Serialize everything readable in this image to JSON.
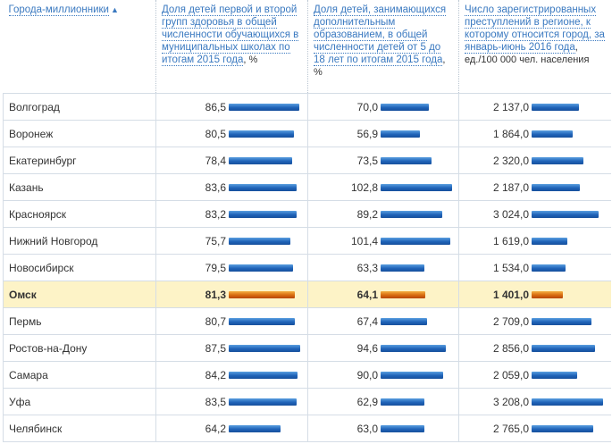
{
  "headers": {
    "city": "Города-миллионники",
    "sort_icon": "sort-arrows-icon",
    "col1": "Доля детей первой и второй групп здоровья в общей численности обучающихся в муниципальных школах по итогам 2015 года",
    "col1_unit": ", %",
    "col2": "Доля детей, занимающихся дополнительным образованием, в общей численности детей от 5 до 18 лет по итогам 2015 года",
    "col2_unit": ", %",
    "col3": "Число зарегистрированных преступлений в регионе, к которому относится город, за январь-июнь 2016 года",
    "col3_unit": ", ед./100 000 чел. населения"
  },
  "bar_colors": {
    "normal": "#1f63b8",
    "highlight": "#d66a10",
    "highlight_row_bg": "#fdf3c7"
  },
  "rows": [
    {
      "city": "Волгоград",
      "v1": "86,5",
      "v2": "70,0",
      "v3": "2 137,0"
    },
    {
      "city": "Воронеж",
      "v1": "80,5",
      "v2": "56,9",
      "v3": "1 864,0"
    },
    {
      "city": "Екатеринбург",
      "v1": "78,4",
      "v2": "73,5",
      "v3": "2 320,0"
    },
    {
      "city": "Казань",
      "v1": "83,6",
      "v2": "102,8",
      "v3": "2 187,0"
    },
    {
      "city": "Красноярск",
      "v1": "83,2",
      "v2": "89,2",
      "v3": "3 024,0"
    },
    {
      "city": "Нижний Новгород",
      "v1": "75,7",
      "v2": "101,4",
      "v3": "1 619,0"
    },
    {
      "city": "Новосибирск",
      "v1": "79,5",
      "v2": "63,3",
      "v3": "1 534,0"
    },
    {
      "city": "Омск",
      "v1": "81,3",
      "v2": "64,1",
      "v3": "1 401,0",
      "highlight": true
    },
    {
      "city": "Пермь",
      "v1": "80,7",
      "v2": "67,4",
      "v3": "2 709,0"
    },
    {
      "city": "Ростов-на-Дону",
      "v1": "87,5",
      "v2": "94,6",
      "v3": "2 856,0"
    },
    {
      "city": "Самара",
      "v1": "84,2",
      "v2": "90,0",
      "v3": "2 059,0"
    },
    {
      "city": "Уфа",
      "v1": "83,5",
      "v2": "62,9",
      "v3": "3 208,0"
    },
    {
      "city": "Челябинск",
      "v1": "64,2",
      "v2": "63,0",
      "v3": "2 765,0"
    }
  ]
}
